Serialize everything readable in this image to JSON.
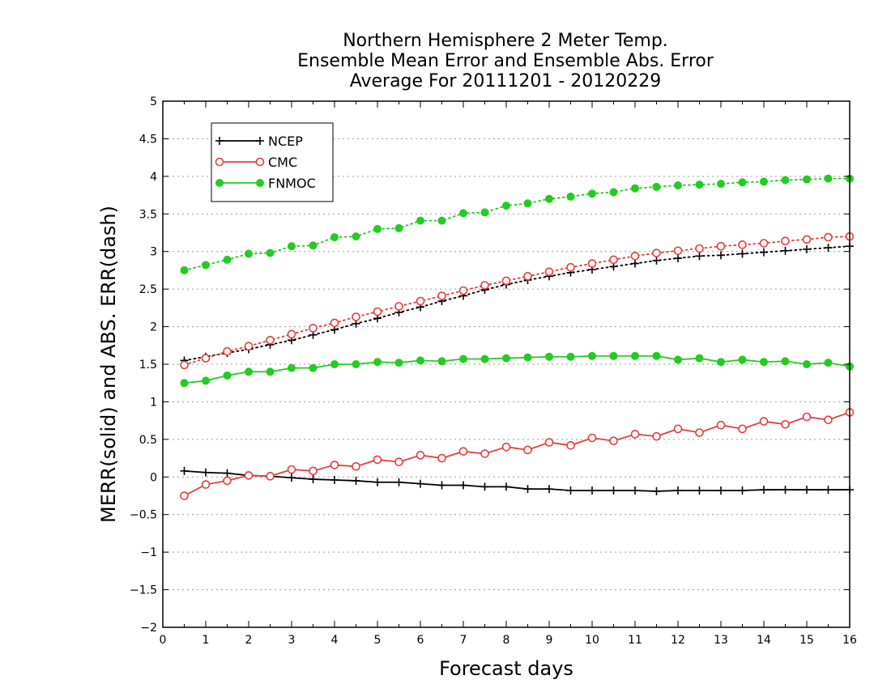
{
  "chart_data": {
    "type": "line",
    "title": [
      "Northern Hemisphere 2 Meter Temp.",
      "Ensemble Mean Error and Ensemble Abs. Error",
      "Average For 20111201 - 20120229"
    ],
    "xlabel": "Forecast days",
    "ylabel": "MERR(solid) and ABS. ERR(dash)",
    "xlim": [
      0,
      16
    ],
    "ylim": [
      -2,
      5
    ],
    "x_ticks": [
      "0",
      "1",
      "2",
      "3",
      "4",
      "5",
      "6",
      "7",
      "8",
      "9",
      "10",
      "11",
      "12",
      "13",
      "14",
      "15",
      "16"
    ],
    "y_ticks": [
      "−2",
      "−1.5",
      "−1",
      "−0.5",
      "0",
      "0.5",
      "1",
      "1.5",
      "2",
      "2.5",
      "3",
      "3.5",
      "4",
      "4.5",
      "5"
    ],
    "grid": "horizontal-dotted",
    "legend_position": "top-left",
    "x": [
      0.5,
      1,
      1.5,
      2,
      2.5,
      3,
      3.5,
      4,
      4.5,
      5,
      5.5,
      6,
      6.5,
      7,
      7.5,
      8,
      8.5,
      9,
      9.5,
      10,
      10.5,
      11,
      11.5,
      12,
      12.5,
      13,
      13.5,
      14,
      14.5,
      15,
      15.5,
      16
    ],
    "series": [
      {
        "name": "NCEP",
        "color": "#000000",
        "marker": "plus",
        "style": "solid",
        "values": [
          0.08,
          0.06,
          0.05,
          0.02,
          0.01,
          -0.01,
          -0.03,
          -0.04,
          -0.05,
          -0.07,
          -0.07,
          -0.09,
          -0.11,
          -0.11,
          -0.13,
          -0.13,
          -0.16,
          -0.16,
          -0.18,
          -0.18,
          -0.18,
          -0.18,
          -0.19,
          -0.18,
          -0.18,
          -0.18,
          -0.18,
          -0.17,
          -0.17,
          -0.17,
          -0.17,
          -0.17
        ]
      },
      {
        "name": "CMC",
        "color": "#e83c3c",
        "marker": "circle-open",
        "style": "solid",
        "values": [
          -0.25,
          -0.1,
          -0.05,
          0.02,
          0.01,
          0.1,
          0.08,
          0.16,
          0.14,
          0.23,
          0.2,
          0.29,
          0.25,
          0.34,
          0.31,
          0.4,
          0.36,
          0.46,
          0.42,
          0.52,
          0.48,
          0.57,
          0.54,
          0.64,
          0.59,
          0.69,
          0.64,
          0.74,
          0.7,
          0.8,
          0.76,
          0.86
        ]
      },
      {
        "name": "FNMOC",
        "color": "#22cc22",
        "marker": "circle-filled",
        "style": "solid",
        "values": [
          1.25,
          1.28,
          1.35,
          1.4,
          1.4,
          1.45,
          1.45,
          1.5,
          1.5,
          1.53,
          1.52,
          1.55,
          1.54,
          1.57,
          1.57,
          1.58,
          1.59,
          1.6,
          1.6,
          1.61,
          1.61,
          1.61,
          1.61,
          1.56,
          1.58,
          1.53,
          1.56,
          1.53,
          1.54,
          1.5,
          1.52,
          1.47
        ]
      },
      {
        "name": "NCEP",
        "color": "#000000",
        "marker": "plus",
        "style": "dotted",
        "legend": false,
        "values": [
          1.55,
          1.6,
          1.65,
          1.7,
          1.76,
          1.82,
          1.89,
          1.96,
          2.04,
          2.11,
          2.19,
          2.26,
          2.34,
          2.41,
          2.49,
          2.56,
          2.62,
          2.67,
          2.72,
          2.76,
          2.8,
          2.84,
          2.88,
          2.91,
          2.94,
          2.95,
          2.97,
          2.99,
          3.01,
          3.03,
          3.05,
          3.07
        ]
      },
      {
        "name": "CMC",
        "color": "#e83c3c",
        "marker": "circle-open",
        "style": "dotted",
        "legend": false,
        "values": [
          1.49,
          1.58,
          1.67,
          1.74,
          1.82,
          1.9,
          1.98,
          2.05,
          2.13,
          2.2,
          2.27,
          2.34,
          2.41,
          2.48,
          2.55,
          2.61,
          2.67,
          2.73,
          2.79,
          2.84,
          2.89,
          2.94,
          2.98,
          3.01,
          3.04,
          3.07,
          3.09,
          3.11,
          3.14,
          3.16,
          3.19,
          3.2
        ]
      },
      {
        "name": "FNMOC",
        "color": "#22cc22",
        "marker": "circle-filled",
        "style": "dotted",
        "legend": false,
        "values": [
          2.75,
          2.82,
          2.89,
          2.97,
          2.98,
          3.07,
          3.08,
          3.19,
          3.2,
          3.3,
          3.31,
          3.41,
          3.41,
          3.51,
          3.52,
          3.61,
          3.64,
          3.7,
          3.73,
          3.77,
          3.79,
          3.84,
          3.86,
          3.88,
          3.89,
          3.9,
          3.92,
          3.93,
          3.95,
          3.96,
          3.97,
          3.97
        ]
      }
    ]
  }
}
